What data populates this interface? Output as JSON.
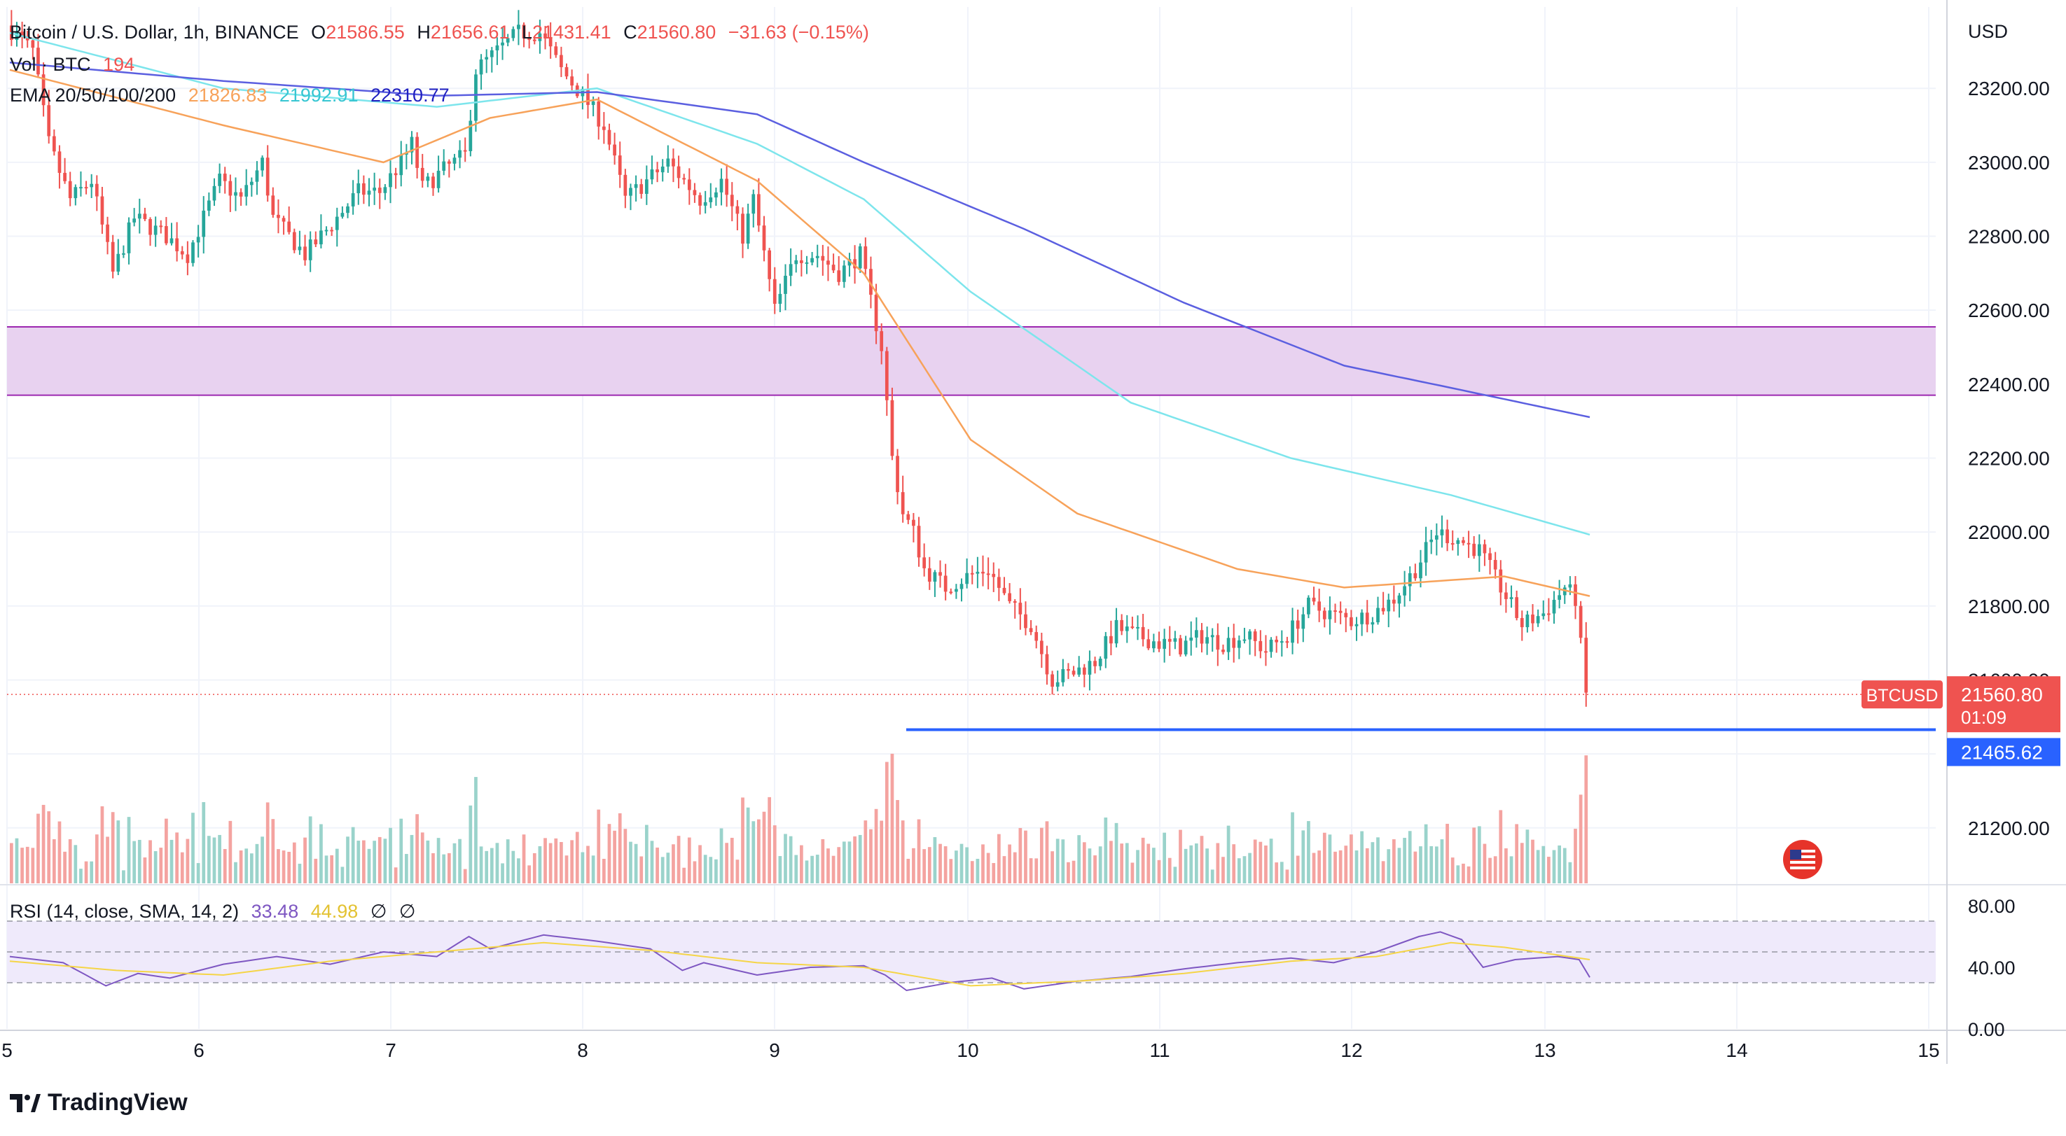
{
  "header": {
    "symbol": "Bitcoin / U.S. Dollar, 1h, BINANCE",
    "o_label": "O",
    "o": "21586.55",
    "h_label": "H",
    "h": "21656.61",
    "l_label": "L",
    "l": "21431.41",
    "c_label": "C",
    "c": "21560.80",
    "change": "−31.63 (−0.15%)",
    "vol_label": "Vol · BTC",
    "vol": "194",
    "ema_label": "EMA 20/50/100/200",
    "ema20": "21826.83",
    "ema50": "21992.91",
    "ema100": "22310.77",
    "rsi_label": "RSI (14, close, SMA, 14, 2)",
    "rsi": "33.48",
    "rsi_ma": "44.98",
    "rsi_extra1": "∅",
    "rsi_extra2": "∅"
  },
  "currency": "USD",
  "price_scale": {
    "labels": [
      "23200.00",
      "23000.00",
      "22800.00",
      "22600.00",
      "22400.00",
      "22200.00",
      "22000.00",
      "21800.00",
      "21600.00",
      "21200.00"
    ],
    "last_price_label": "BTCUSD",
    "last_price": "21560.80",
    "countdown": "01:09",
    "support_label": "21465.62"
  },
  "rsi_scale": {
    "labels": [
      "80.00",
      "40.00",
      "0.00"
    ]
  },
  "time_scale": {
    "labels": [
      "5",
      "6",
      "7",
      "8",
      "9",
      "10",
      "11",
      "12",
      "13",
      "14",
      "15"
    ]
  },
  "branding": {
    "logo_text": "TradingView"
  },
  "colors": {
    "up": "#26a69a",
    "down": "#ef5350",
    "vol_up": "#9ad3cb",
    "vol_down": "#f4a3a0",
    "ema20": "#f7a25a",
    "ema50": "#7de5ec",
    "ema100": "#5b5fe0",
    "zone_fill": "#e8d2f0",
    "zone_border": "#9c27b0",
    "support": "#2962ff",
    "rsi_line": "#7e57c2",
    "rsi_ma": "#f5d547",
    "rsi_band": "#efeafb"
  },
  "chart_data": {
    "type": "candlestick",
    "title": "Bitcoin / U.S. Dollar, 1h, BINANCE",
    "ylim": [
      21050,
      23420
    ],
    "x": [
      "5",
      "6",
      "7",
      "8",
      "9",
      "10",
      "11",
      "12",
      "13",
      "14",
      "15"
    ],
    "price_path": [
      [
        0,
        23370
      ],
      [
        5,
        23300
      ],
      [
        8,
        23050
      ],
      [
        12,
        22900
      ],
      [
        16,
        22950
      ],
      [
        20,
        22700
      ],
      [
        24,
        22850
      ],
      [
        30,
        22800
      ],
      [
        34,
        22750
      ],
      [
        40,
        22950
      ],
      [
        44,
        22900
      ],
      [
        48,
        23000
      ],
      [
        50,
        22850
      ],
      [
        56,
        22750
      ],
      [
        62,
        22850
      ],
      [
        66,
        22920
      ],
      [
        70,
        22920
      ],
      [
        74,
        23000
      ],
      [
        76,
        23050
      ],
      [
        78,
        22930
      ],
      [
        82,
        22980
      ],
      [
        86,
        23020
      ],
      [
        88,
        23250
      ],
      [
        92,
        23300
      ],
      [
        96,
        23350
      ],
      [
        100,
        23350
      ],
      [
        104,
        23250
      ],
      [
        108,
        23180
      ],
      [
        112,
        23100
      ],
      [
        116,
        22900
      ],
      [
        120,
        22950
      ],
      [
        124,
        23000
      ],
      [
        130,
        22900
      ],
      [
        134,
        22950
      ],
      [
        138,
        22800
      ],
      [
        140,
        22900
      ],
      [
        144,
        22600
      ],
      [
        148,
        22750
      ],
      [
        152,
        22750
      ],
      [
        156,
        22700
      ],
      [
        160,
        22750
      ],
      [
        164,
        22500
      ],
      [
        166,
        22200
      ],
      [
        168,
        22050
      ],
      [
        170,
        22000
      ],
      [
        172,
        21900
      ],
      [
        176,
        21850
      ],
      [
        180,
        21880
      ],
      [
        184,
        21900
      ],
      [
        188,
        21800
      ],
      [
        192,
        21750
      ],
      [
        196,
        21600
      ],
      [
        200,
        21620
      ],
      [
        204,
        21650
      ],
      [
        208,
        21740
      ],
      [
        212,
        21720
      ],
      [
        216,
        21700
      ],
      [
        220,
        21690
      ],
      [
        224,
        21720
      ],
      [
        228,
        21700
      ],
      [
        232,
        21720
      ],
      [
        236,
        21680
      ],
      [
        240,
        21720
      ],
      [
        244,
        21800
      ],
      [
        248,
        21780
      ],
      [
        252,
        21760
      ],
      [
        256,
        21780
      ],
      [
        260,
        21820
      ],
      [
        264,
        21900
      ],
      [
        268,
        22000
      ],
      [
        272,
        21980
      ],
      [
        276,
        21950
      ],
      [
        280,
        21850
      ],
      [
        284,
        21750
      ],
      [
        288,
        21780
      ],
      [
        292,
        21850
      ],
      [
        294,
        21820
      ],
      [
        296,
        21560
      ]
    ],
    "ema20": [
      [
        0,
        23250
      ],
      [
        40,
        23100
      ],
      [
        70,
        23000
      ],
      [
        90,
        23120
      ],
      [
        110,
        23170
      ],
      [
        140,
        22950
      ],
      [
        160,
        22700
      ],
      [
        180,
        22250
      ],
      [
        200,
        22050
      ],
      [
        230,
        21900
      ],
      [
        250,
        21850
      ],
      [
        270,
        21870
      ],
      [
        280,
        21880
      ],
      [
        296,
        21826.83
      ]
    ],
    "ema50": [
      [
        0,
        23350
      ],
      [
        40,
        23200
      ],
      [
        80,
        23150
      ],
      [
        110,
        23200
      ],
      [
        140,
        23050
      ],
      [
        160,
        22900
      ],
      [
        180,
        22650
      ],
      [
        210,
        22350
      ],
      [
        240,
        22200
      ],
      [
        270,
        22100
      ],
      [
        296,
        21992.91
      ]
    ],
    "ema100": [
      [
        0,
        23270
      ],
      [
        40,
        23220
      ],
      [
        80,
        23180
      ],
      [
        110,
        23190
      ],
      [
        140,
        23130
      ],
      [
        160,
        23000
      ],
      [
        190,
        22820
      ],
      [
        220,
        22620
      ],
      [
        250,
        22450
      ],
      [
        270,
        22390
      ],
      [
        296,
        22310.77
      ]
    ],
    "resistance_zone": [
      22370,
      22555
    ],
    "support_level": 21465.62,
    "last_price": 21560.8,
    "rsi": [
      [
        0,
        47
      ],
      [
        10,
        43
      ],
      [
        18,
        28
      ],
      [
        24,
        36
      ],
      [
        30,
        33
      ],
      [
        40,
        42
      ],
      [
        50,
        47
      ],
      [
        60,
        42
      ],
      [
        70,
        50
      ],
      [
        80,
        47
      ],
      [
        86,
        60
      ],
      [
        90,
        52
      ],
      [
        100,
        61
      ],
      [
        110,
        57
      ],
      [
        120,
        52
      ],
      [
        126,
        38
      ],
      [
        130,
        43
      ],
      [
        140,
        35
      ],
      [
        150,
        40
      ],
      [
        160,
        41
      ],
      [
        164,
        35
      ],
      [
        168,
        25
      ],
      [
        176,
        30
      ],
      [
        184,
        33
      ],
      [
        190,
        26
      ],
      [
        200,
        31
      ],
      [
        210,
        34
      ],
      [
        220,
        39
      ],
      [
        230,
        43
      ],
      [
        240,
        46
      ],
      [
        248,
        43
      ],
      [
        256,
        50
      ],
      [
        264,
        60
      ],
      [
        268,
        63
      ],
      [
        272,
        58
      ],
      [
        276,
        40
      ],
      [
        282,
        45
      ],
      [
        290,
        47
      ],
      [
        294,
        45
      ],
      [
        296,
        33.48
      ]
    ],
    "rsi_ma": [
      [
        0,
        44
      ],
      [
        20,
        38
      ],
      [
        40,
        35
      ],
      [
        60,
        44
      ],
      [
        80,
        50
      ],
      [
        100,
        56
      ],
      [
        120,
        51
      ],
      [
        140,
        43
      ],
      [
        160,
        40
      ],
      [
        180,
        28
      ],
      [
        200,
        31
      ],
      [
        220,
        36
      ],
      [
        240,
        44
      ],
      [
        256,
        47
      ],
      [
        270,
        56
      ],
      [
        280,
        53
      ],
      [
        296,
        44.98
      ]
    ],
    "rsi_bands": [
      30,
      50,
      70
    ]
  }
}
